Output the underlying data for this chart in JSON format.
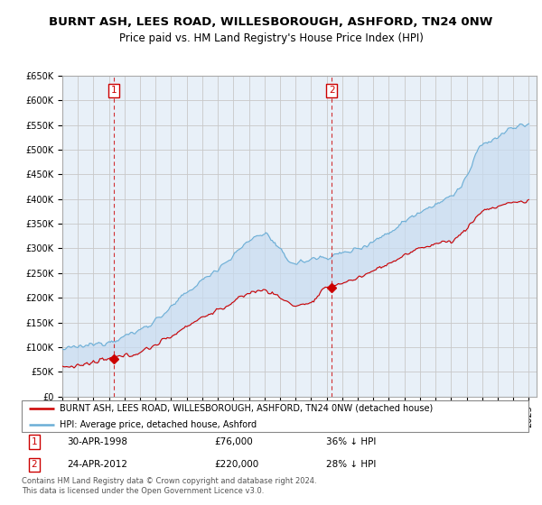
{
  "title": "BURNT ASH, LEES ROAD, WILLESBOROUGH, ASHFORD, TN24 0NW",
  "subtitle": "Price paid vs. HM Land Registry's House Price Index (HPI)",
  "ylabel_ticks": [
    "£0",
    "£50K",
    "£100K",
    "£150K",
    "£200K",
    "£250K",
    "£300K",
    "£350K",
    "£400K",
    "£450K",
    "£500K",
    "£550K",
    "£600K",
    "£650K"
  ],
  "ytick_values": [
    0,
    50000,
    100000,
    150000,
    200000,
    250000,
    300000,
    350000,
    400000,
    450000,
    500000,
    550000,
    600000,
    650000
  ],
  "xmin": 1995.0,
  "xmax": 2025.5,
  "ymin": 0,
  "ymax": 650000,
  "hpi_color": "#6baed6",
  "hpi_fill_color": "#ddeeff",
  "price_color": "#cc0000",
  "sale1_year": 1998.33,
  "sale1_price": 76000,
  "sale2_year": 2012.32,
  "sale2_price": 220000,
  "legend_line1": "BURNT ASH, LEES ROAD, WILLESBOROUGH, ASHFORD, TN24 0NW (detached house)",
  "legend_line2": "HPI: Average price, detached house, Ashford",
  "background_color": "#ffffff",
  "plot_bg_color": "#e8f0f8",
  "grid_color": "#c8c8c8",
  "title_fontsize": 9.5,
  "subtitle_fontsize": 8.5
}
